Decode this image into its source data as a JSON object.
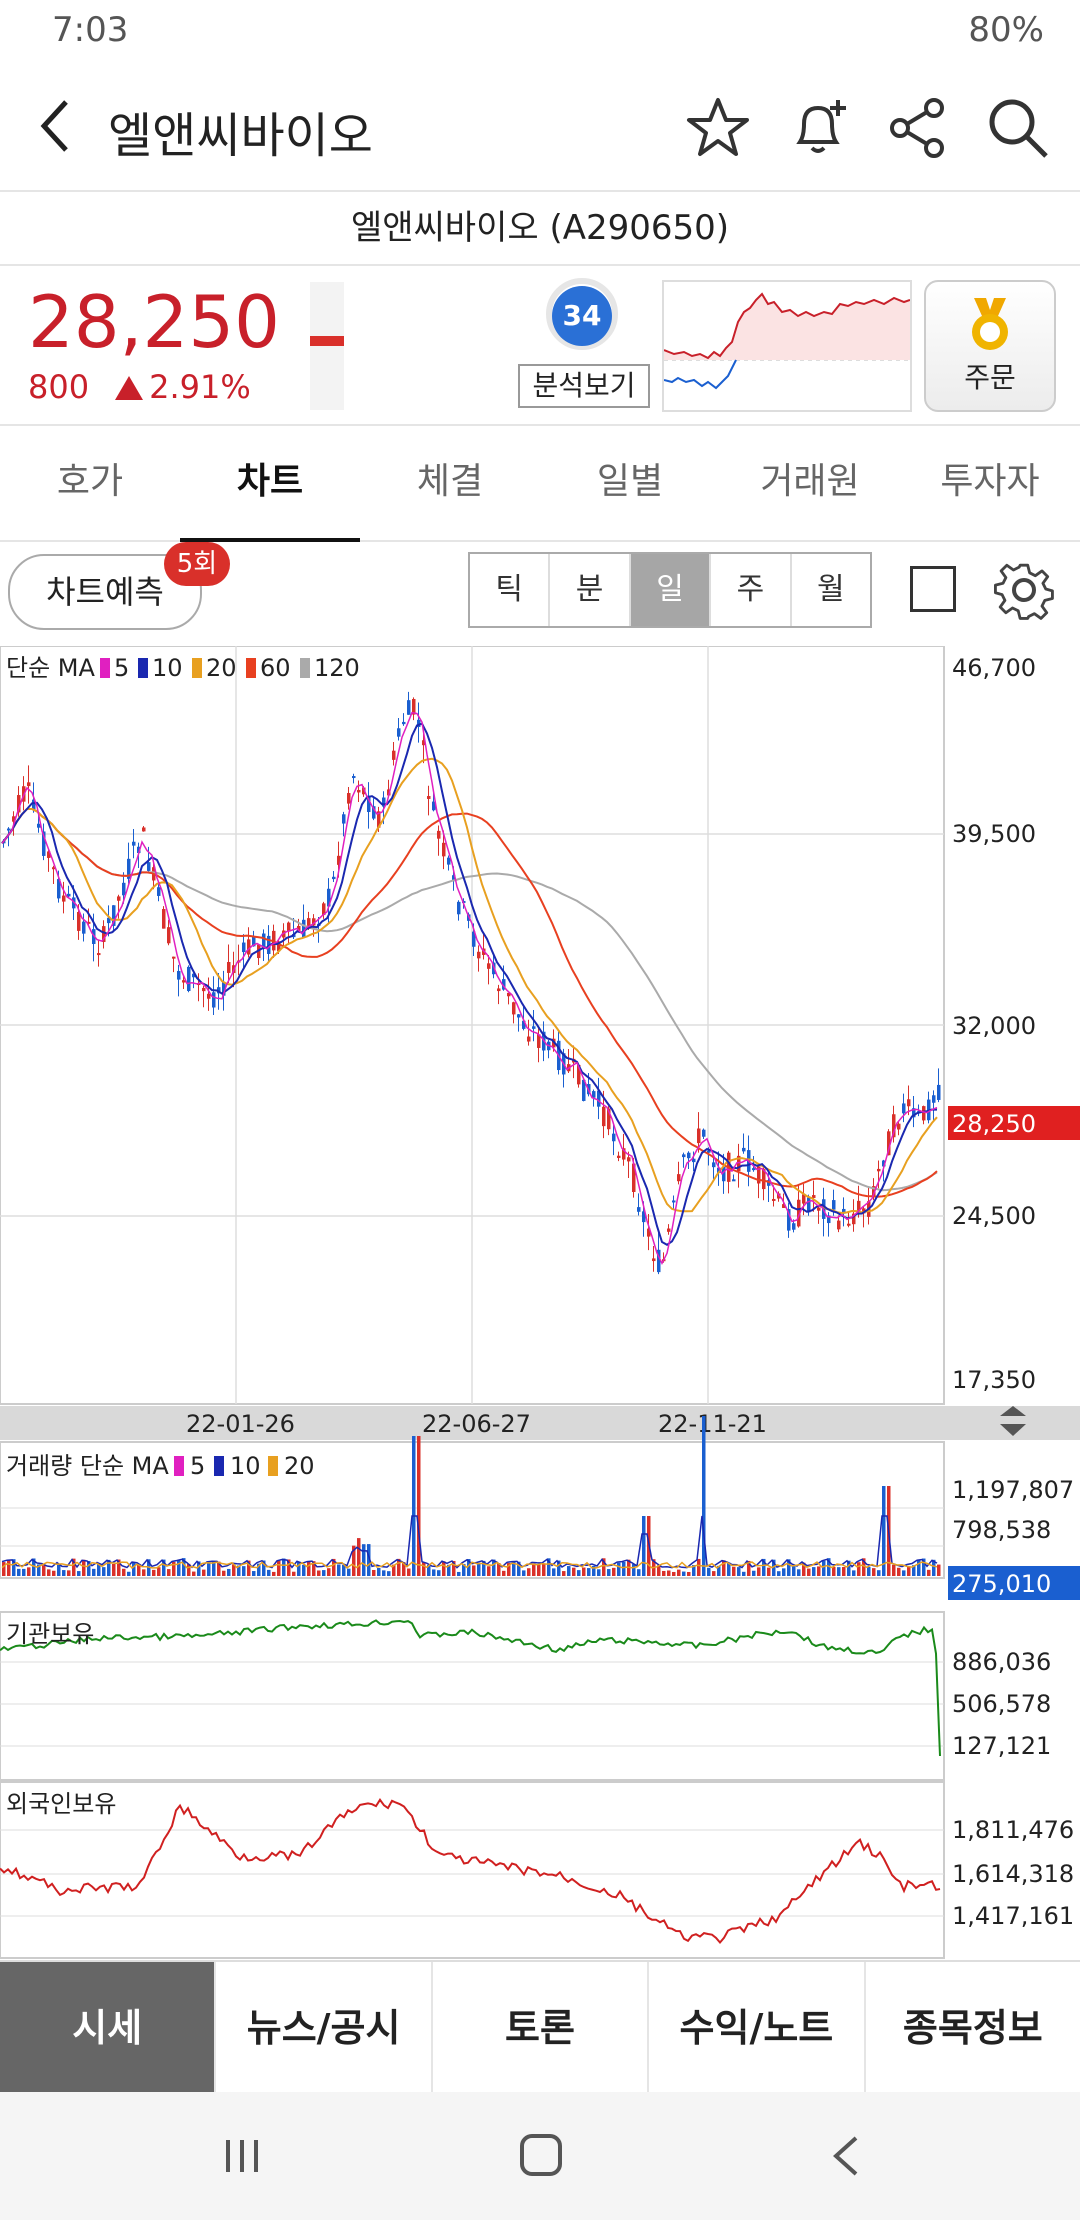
{
  "status": {
    "time": "7:03",
    "battery": "80%"
  },
  "header": {
    "back_icon": "chevron-left-icon",
    "title": "엘앤씨바이오"
  },
  "subtitle": "엘앤씨바이오 (A290650)",
  "quote": {
    "price": "28,250",
    "change": "800",
    "change_pct": "2.91%",
    "score": "34",
    "analysis_label": "분석보기",
    "order_label": "주문"
  },
  "tabs": [
    "호가",
    "차트",
    "체결",
    "일별",
    "거래원",
    "투자자"
  ],
  "chart_tools": {
    "predict_label": "차트예측",
    "predict_badge": "5회",
    "periods": [
      "틱",
      "분",
      "일",
      "주",
      "월"
    ],
    "active_period": "일"
  },
  "price_panel": {
    "legend": "단순 MA",
    "ma": [
      "5",
      "10",
      "20",
      "60",
      "120"
    ],
    "axis": [
      "46,700",
      "39,500",
      "32,000",
      "24,500",
      "17,350"
    ],
    "current": "28,250"
  },
  "dates": [
    "22-01-26",
    "22-06-27",
    "22-11-21"
  ],
  "volume_panel": {
    "legend": "거래량 단순 MA",
    "ma": [
      "5",
      "10",
      "20"
    ],
    "axis": [
      "1,197,807",
      "798,538"
    ],
    "current": "275,010"
  },
  "inst_panel": {
    "legend": "기관보유",
    "axis": [
      "886,036",
      "506,578",
      "127,121"
    ]
  },
  "foreign_panel": {
    "legend": "외국인보유",
    "axis": [
      "1,811,476",
      "1,614,318",
      "1,417,161"
    ]
  },
  "bottom_nav": [
    "시세",
    "뉴스/공시",
    "토론",
    "수익/노트",
    "종목정보"
  ],
  "colors": {
    "up": "#c8202a",
    "down": "#1a5fd0",
    "ma5": "#e020c0",
    "ma10": "#1a28b0",
    "ma20": "#e8a020",
    "ma60": "#e84020",
    "ma120": "#aaaaaa"
  },
  "chart_data": {
    "type": "line",
    "price_axis": [
      "46,700",
      "39,500",
      "32,000",
      "24,500",
      "17,350"
    ],
    "x": [
      "22-01-26",
      "22-06-27",
      "22-11-21"
    ],
    "close_last": 28250
  }
}
